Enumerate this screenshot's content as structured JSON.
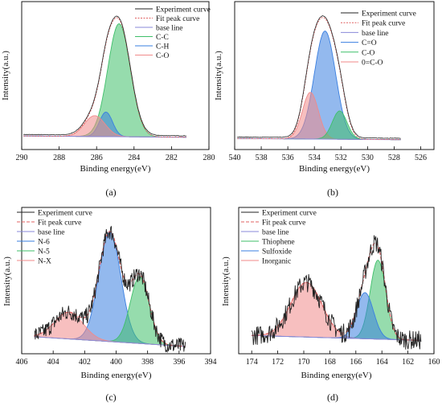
{
  "figure": {
    "panels": [
      {
        "label": "(a)",
        "xlabel": "Binding energy(eV)",
        "ylabel": "Intensity(a.u.)",
        "legend": [
          "Experiment curve",
          "Fit peak curve",
          "base line",
          "C-C",
          "C-H",
          "C-O"
        ]
      },
      {
        "label": "(b)",
        "xlabel": "Binding energy(eV)",
        "ylabel": "Intensity(a.u.)",
        "legend": [
          "Experiment curve",
          "Fit peak curve",
          "base line",
          "C=O",
          "C-O",
          "0=C-O"
        ]
      },
      {
        "label": "(c)",
        "xlabel": "Binding energy(eV)",
        "ylabel": "Intensity(a.u.)",
        "legend": [
          "Experiment curve",
          "Fit peak curve",
          "base line",
          "N-6",
          "N-5",
          "N-X"
        ]
      },
      {
        "label": "(d)",
        "xlabel": "Binding energy(eV)",
        "ylabel": "Intensity(a.u.)",
        "legend": [
          "Experiment curve",
          "Fit peak curve",
          "base line",
          "Thiophene",
          "Sulfoxide",
          "Inorganic"
        ]
      }
    ]
  },
  "colors": {
    "experiment": "#222222",
    "fit": "#e06060",
    "baseline": "#8a8ad8",
    "green": "#3fbf6a",
    "blue": "#3a7fe0",
    "pink": "#f08a8a",
    "magenta": "#cc55cc"
  },
  "chart_data": [
    {
      "type": "area",
      "xlim": [
        290,
        280
      ],
      "xticks": [
        290,
        288,
        286,
        284,
        282,
        280
      ],
      "x_reversed": true,
      "grid": false,
      "legend_position": "top-right",
      "baseline": {
        "x": [
          289.9,
          281.2
        ],
        "y": [
          0.05,
          0.04
        ]
      },
      "series": [
        {
          "name": "C-C",
          "color": "#3fbf6a",
          "peak": 284.8,
          "height": 0.92,
          "width": 0.6
        },
        {
          "name": "C-H",
          "color": "#3a7fe0",
          "peak": 285.5,
          "height": 0.2,
          "width": 0.35
        },
        {
          "name": "C-O",
          "color": "#f08a8a",
          "peak": 286.1,
          "height": 0.17,
          "width": 0.55
        }
      ]
    },
    {
      "type": "area",
      "xlim": [
        540,
        525
      ],
      "xticks": [
        540,
        538,
        536,
        534,
        532,
        530,
        528,
        526
      ],
      "x_reversed": true,
      "grid": false,
      "legend_position": "top-right",
      "baseline": {
        "x": [
          539.8,
          527.5
        ],
        "y": [
          0.03,
          0.02
        ]
      },
      "series": [
        {
          "name": "C=O",
          "color": "#3a7fe0",
          "peak": 533.2,
          "height": 0.88,
          "width": 0.8
        },
        {
          "name": "C-O",
          "color": "#3fbf6a",
          "peak": 532.1,
          "height": 0.23,
          "width": 0.55
        },
        {
          "name": "0=C-O",
          "color": "#f08a8a",
          "peak": 534.3,
          "height": 0.38,
          "width": 0.6
        }
      ]
    },
    {
      "type": "area",
      "xlim": [
        406,
        394
      ],
      "xticks": [
        406,
        404,
        402,
        400,
        398,
        396,
        394
      ],
      "x_reversed": true,
      "grid": false,
      "legend_position": "top-left",
      "baseline": {
        "x": [
          405.2,
          395.6
        ],
        "y": [
          0.08,
          0.0
        ]
      },
      "series": [
        {
          "name": "N-6",
          "color": "#3a7fe0",
          "peak": 400.4,
          "height": 0.9,
          "width": 0.7
        },
        {
          "name": "N-5",
          "color": "#3fbf6a",
          "peak": 398.5,
          "height": 0.55,
          "width": 0.6
        },
        {
          "name": "N-X",
          "color": "#f08a8a",
          "peak": 403.0,
          "height": 0.22,
          "width": 0.9
        }
      ]
    },
    {
      "type": "area",
      "xlim": [
        175,
        160
      ],
      "xticks": [
        174,
        172,
        170,
        168,
        166,
        164,
        162,
        160
      ],
      "x_reversed": true,
      "grid": false,
      "legend_position": "top-left",
      "baseline": {
        "x": [
          174.0,
          161.0
        ],
        "y": [
          0.09,
          0.05
        ]
      },
      "series": [
        {
          "name": "Thiophene",
          "color": "#3fbf6a",
          "peak": 164.3,
          "height": 0.65,
          "width": 0.6
        },
        {
          "name": "Sulfoxide",
          "color": "#3a7fe0",
          "peak": 165.3,
          "height": 0.38,
          "width": 0.65
        },
        {
          "name": "Inorganic",
          "color": "#f08a8a",
          "peak": 169.8,
          "height": 0.45,
          "width": 1.2
        }
      ]
    }
  ]
}
